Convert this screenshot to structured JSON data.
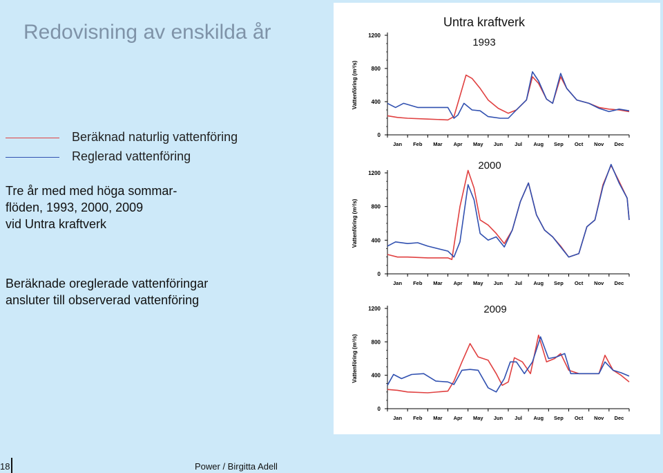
{
  "slide": {
    "title": "Redovisning av enskilda år",
    "legend": {
      "natural": "Beräknad naturlig vattenföring",
      "regulated": "Reglerad vattenföring",
      "natural_color": "#e04040",
      "regulated_color": "#3050b0"
    },
    "text1": "Tre år med med höga sommar-\nflöden, 1993, 2000, 2009\nvid Untra kraftverk",
    "text2": "Beräknade oreglerade vattenföringar\nansluter till observerad vattenföring",
    "footer": {
      "page": "18",
      "author": "Power / Birgitta Adell"
    }
  },
  "chart_data": [
    {
      "type": "line",
      "title": "Untra kraftverk",
      "subtitle": "1993",
      "ylabel": "Vattenföring (m³/s)",
      "ylim": [
        0,
        1200
      ],
      "yticks": [
        "1200",
        "800",
        "400",
        "0"
      ],
      "categories": [
        "Jan",
        "Feb",
        "Mar",
        "Apr",
        "May",
        "Jun",
        "Jul",
        "Aug",
        "Sep",
        "Oct",
        "Nov",
        "Dec"
      ],
      "xlim": [
        0,
        12
      ],
      "series": [
        {
          "color": "#e04040",
          "points": [
            [
              0,
              230
            ],
            [
              0.5,
              210
            ],
            [
              1,
              200
            ],
            [
              2,
              190
            ],
            [
              3,
              180
            ],
            [
              3.3,
              220
            ],
            [
              3.7,
              550
            ],
            [
              3.9,
              720
            ],
            [
              4.2,
              680
            ],
            [
              4.6,
              560
            ],
            [
              5,
              420
            ],
            [
              5.5,
              320
            ],
            [
              6,
              260
            ],
            [
              6.4,
              300
            ],
            [
              6.9,
              420
            ],
            [
              7.2,
              700
            ],
            [
              7.5,
              620
            ],
            [
              7.9,
              430
            ],
            [
              8.2,
              380
            ],
            [
              8.6,
              700
            ],
            [
              8.9,
              560
            ],
            [
              9.4,
              420
            ],
            [
              10,
              380
            ],
            [
              10.5,
              330
            ],
            [
              11,
              310
            ],
            [
              11.5,
              300
            ],
            [
              12,
              280
            ]
          ]
        },
        {
          "color": "#3050b0",
          "points": [
            [
              0,
              380
            ],
            [
              0.4,
              330
            ],
            [
              0.8,
              380
            ],
            [
              1.5,
              330
            ],
            [
              2.5,
              330
            ],
            [
              3,
              330
            ],
            [
              3.3,
              200
            ],
            [
              3.5,
              240
            ],
            [
              3.8,
              380
            ],
            [
              4.2,
              300
            ],
            [
              4.6,
              290
            ],
            [
              5,
              220
            ],
            [
              5.6,
              200
            ],
            [
              6,
              200
            ],
            [
              6.4,
              300
            ],
            [
              6.9,
              420
            ],
            [
              7.2,
              760
            ],
            [
              7.5,
              650
            ],
            [
              7.9,
              430
            ],
            [
              8.2,
              380
            ],
            [
              8.6,
              740
            ],
            [
              8.9,
              560
            ],
            [
              9.4,
              420
            ],
            [
              10,
              380
            ],
            [
              10.5,
              320
            ],
            [
              11,
              280
            ],
            [
              11.5,
              310
            ],
            [
              12,
              290
            ]
          ]
        }
      ]
    },
    {
      "type": "line",
      "title": "",
      "subtitle": "2000",
      "ylabel": "Vattenföring (m³/s)",
      "ylim": [
        0,
        1200
      ],
      "yticks": [
        "1200",
        "800",
        "400",
        "0"
      ],
      "categories": [
        "Jan",
        "Feb",
        "Mar",
        "Apr",
        "May",
        "Jun",
        "Jul",
        "Aug",
        "Sep",
        "Oct",
        "Nov",
        "Dec"
      ],
      "xlim": [
        0,
        12
      ],
      "series": [
        {
          "color": "#e04040",
          "points": [
            [
              0,
              230
            ],
            [
              0.5,
              200
            ],
            [
              1,
              200
            ],
            [
              2,
              190
            ],
            [
              3,
              190
            ],
            [
              3.2,
              170
            ],
            [
              3.6,
              800
            ],
            [
              4,
              1230
            ],
            [
              4.3,
              1020
            ],
            [
              4.6,
              640
            ],
            [
              5,
              580
            ],
            [
              5.4,
              480
            ],
            [
              5.8,
              360
            ],
            [
              6.2,
              520
            ],
            [
              6.6,
              860
            ],
            [
              7,
              1080
            ],
            [
              7.4,
              700
            ],
            [
              7.8,
              520
            ],
            [
              8.2,
              440
            ],
            [
              8.6,
              330
            ],
            [
              9,
              200
            ],
            [
              9.5,
              240
            ],
            [
              9.9,
              560
            ],
            [
              10.3,
              640
            ],
            [
              10.7,
              1060
            ],
            [
              11.1,
              1290
            ],
            [
              11.5,
              1100
            ],
            [
              11.9,
              900
            ],
            [
              12,
              640
            ]
          ]
        },
        {
          "color": "#3050b0",
          "points": [
            [
              0,
              330
            ],
            [
              0.4,
              380
            ],
            [
              1,
              360
            ],
            [
              1.5,
              370
            ],
            [
              2,
              330
            ],
            [
              3,
              270
            ],
            [
              3.3,
              200
            ],
            [
              3.6,
              380
            ],
            [
              4,
              1060
            ],
            [
              4.3,
              880
            ],
            [
              4.6,
              480
            ],
            [
              5,
              400
            ],
            [
              5.4,
              440
            ],
            [
              5.8,
              320
            ],
            [
              6.2,
              520
            ],
            [
              6.6,
              860
            ],
            [
              7,
              1080
            ],
            [
              7.4,
              700
            ],
            [
              7.8,
              520
            ],
            [
              8.2,
              440
            ],
            [
              8.6,
              320
            ],
            [
              9,
              200
            ],
            [
              9.5,
              240
            ],
            [
              9.9,
              560
            ],
            [
              10.3,
              640
            ],
            [
              10.7,
              1040
            ],
            [
              11.1,
              1300
            ],
            [
              11.5,
              1080
            ],
            [
              11.9,
              900
            ],
            [
              12,
              640
            ]
          ]
        }
      ]
    },
    {
      "type": "line",
      "title": "",
      "subtitle": "2009",
      "ylabel": "Vattenföring (m³/s)",
      "ylim": [
        0,
        1200
      ],
      "yticks": [
        "1200",
        "800",
        "400",
        "0"
      ],
      "categories": [
        "Jan",
        "Feb",
        "Mar",
        "Apr",
        "May",
        "Jun",
        "Jul",
        "Aug",
        "Sep",
        "Oct",
        "Nov",
        "Dec"
      ],
      "xlim": [
        0,
        12
      ],
      "series": [
        {
          "color": "#e04040",
          "points": [
            [
              0,
              230
            ],
            [
              0.5,
              220
            ],
            [
              1,
              200
            ],
            [
              2,
              190
            ],
            [
              3,
              210
            ],
            [
              3.3,
              330
            ],
            [
              3.7,
              560
            ],
            [
              4.1,
              780
            ],
            [
              4.5,
              620
            ],
            [
              5,
              580
            ],
            [
              5.4,
              420
            ],
            [
              5.7,
              280
            ],
            [
              6,
              320
            ],
            [
              6.3,
              610
            ],
            [
              6.7,
              560
            ],
            [
              7.1,
              420
            ],
            [
              7.5,
              880
            ],
            [
              7.9,
              560
            ],
            [
              8.3,
              600
            ],
            [
              8.6,
              660
            ],
            [
              9,
              460
            ],
            [
              9.5,
              420
            ],
            [
              10,
              420
            ],
            [
              10.5,
              420
            ],
            [
              10.8,
              640
            ],
            [
              11.2,
              460
            ],
            [
              11.6,
              400
            ],
            [
              12,
              320
            ]
          ]
        },
        {
          "color": "#3050b0",
          "points": [
            [
              0,
              280
            ],
            [
              0.3,
              410
            ],
            [
              0.7,
              360
            ],
            [
              1.2,
              410
            ],
            [
              1.8,
              420
            ],
            [
              2.4,
              330
            ],
            [
              3,
              320
            ],
            [
              3.3,
              290
            ],
            [
              3.7,
              460
            ],
            [
              4.1,
              470
            ],
            [
              4.5,
              460
            ],
            [
              5,
              250
            ],
            [
              5.4,
              200
            ],
            [
              5.8,
              360
            ],
            [
              6.1,
              560
            ],
            [
              6.4,
              560
            ],
            [
              6.8,
              420
            ],
            [
              7.2,
              560
            ],
            [
              7.6,
              860
            ],
            [
              8,
              600
            ],
            [
              8.4,
              620
            ],
            [
              8.8,
              660
            ],
            [
              9.1,
              420
            ],
            [
              9.5,
              420
            ],
            [
              10,
              420
            ],
            [
              10.5,
              420
            ],
            [
              10.8,
              560
            ],
            [
              11.2,
              460
            ],
            [
              11.6,
              430
            ],
            [
              12,
              390
            ]
          ]
        }
      ]
    }
  ]
}
